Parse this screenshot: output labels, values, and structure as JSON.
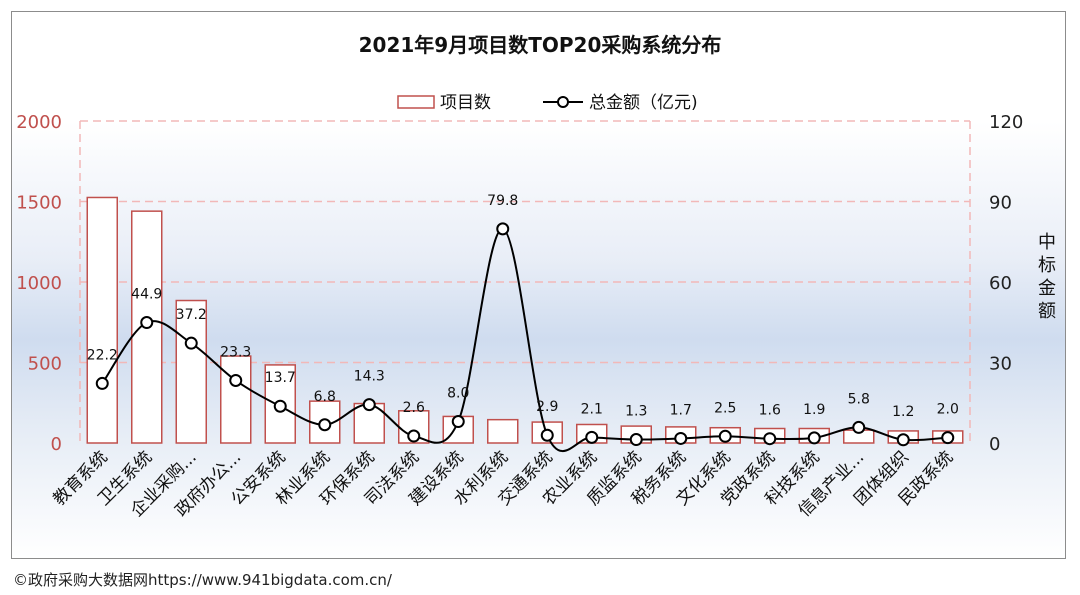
{
  "chart_data": {
    "type": "bar",
    "title": "2021年9月项目数TOP20采购系统分布",
    "legend": [
      "项目数",
      "总金额（亿元)"
    ],
    "legend_position": "top",
    "categories": [
      "教育系统",
      "卫生系统",
      "企业采购...",
      "政府办公...",
      "公安系统",
      "林业系统",
      "环保系统",
      "司法系统",
      "建设系统",
      "水利系统",
      "交通系统",
      "农业系统",
      "质监系统",
      "税务系统",
      "文化系统",
      "党政系统",
      "科技系统",
      "信息产业...",
      "团体组织",
      "民政系统"
    ],
    "series": [
      {
        "name": "项目数",
        "axis": "left",
        "style": "bar",
        "values": [
          1525,
          1440,
          885,
          540,
          485,
          260,
          245,
          200,
          165,
          145,
          130,
          115,
          105,
          100,
          95,
          90,
          90,
          80,
          75,
          75
        ]
      },
      {
        "name": "总金额（亿元)",
        "axis": "right",
        "style": "line-smooth",
        "values": [
          22.2,
          44.9,
          37.2,
          23.3,
          13.7,
          6.8,
          14.3,
          2.6,
          8.0,
          79.8,
          2.9,
          2.1,
          1.3,
          1.7,
          2.5,
          1.6,
          1.9,
          5.8,
          1.2,
          2.0
        ],
        "labels": [
          "22.2",
          "44.9",
          "37.2",
          "23.3",
          "13.7",
          "6.8",
          "14.3",
          "2.6",
          "8.0",
          "79.8",
          "2.9",
          "2.1",
          "1.3",
          "1.7",
          "2.5",
          "1.6",
          "1.9",
          "5.8",
          "1.2",
          "2.0"
        ]
      }
    ],
    "y_left": {
      "ylim": [
        0,
        2000
      ],
      "ticks": [
        "0",
        "500",
        "1000",
        "1500",
        "2000"
      ],
      "color": "#c0504d"
    },
    "y_right": {
      "ylim": [
        0,
        120
      ],
      "ticks": [
        "0",
        "30",
        "60",
        "90",
        "120"
      ],
      "label": "中标金额"
    },
    "grid": true,
    "colors": {
      "bar_stroke": "#c0504d",
      "bar_fill": "#ffffff",
      "line": "#000000",
      "grid": "#f2b8b8"
    }
  },
  "footer": "©政府采购大数据网https://www.941bigdata.com.cn/"
}
